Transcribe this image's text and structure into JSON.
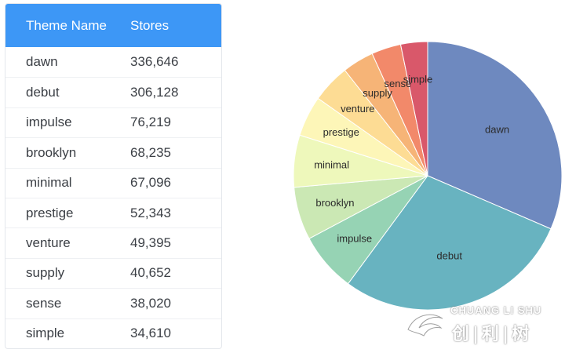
{
  "table": {
    "headers": {
      "name": "Theme Name",
      "value": "Stores"
    },
    "rows": [
      {
        "name": "dawn",
        "value": "336,646"
      },
      {
        "name": "debut",
        "value": "306,128"
      },
      {
        "name": "impulse",
        "value": "76,219"
      },
      {
        "name": "brooklyn",
        "value": "68,235"
      },
      {
        "name": "minimal",
        "value": "67,096"
      },
      {
        "name": "prestige",
        "value": "52,343"
      },
      {
        "name": "venture",
        "value": "49,395"
      },
      {
        "name": "supply",
        "value": "40,652"
      },
      {
        "name": "sense",
        "value": "38,020"
      },
      {
        "name": "simple",
        "value": "34,610"
      }
    ]
  },
  "chart_data": {
    "type": "pie",
    "categories": [
      "dawn",
      "debut",
      "impulse",
      "brooklyn",
      "minimal",
      "prestige",
      "venture",
      "supply",
      "sense",
      "simple"
    ],
    "values": [
      336646,
      306128,
      76219,
      68235,
      67096,
      52343,
      49395,
      40652,
      38020,
      34610
    ],
    "colors": [
      "#6e89bf",
      "#68b3c0",
      "#96d3b4",
      "#cbe8b4",
      "#eef8bb",
      "#fdf6b8",
      "#fddc94",
      "#f6b477",
      "#f2896a",
      "#d9586a"
    ],
    "start_angle_deg": 0,
    "direction": "clockwise",
    "legend": "none"
  },
  "watermark": {
    "text_top": "CHUANG LI SHU",
    "text_cn": "创|利|树"
  }
}
